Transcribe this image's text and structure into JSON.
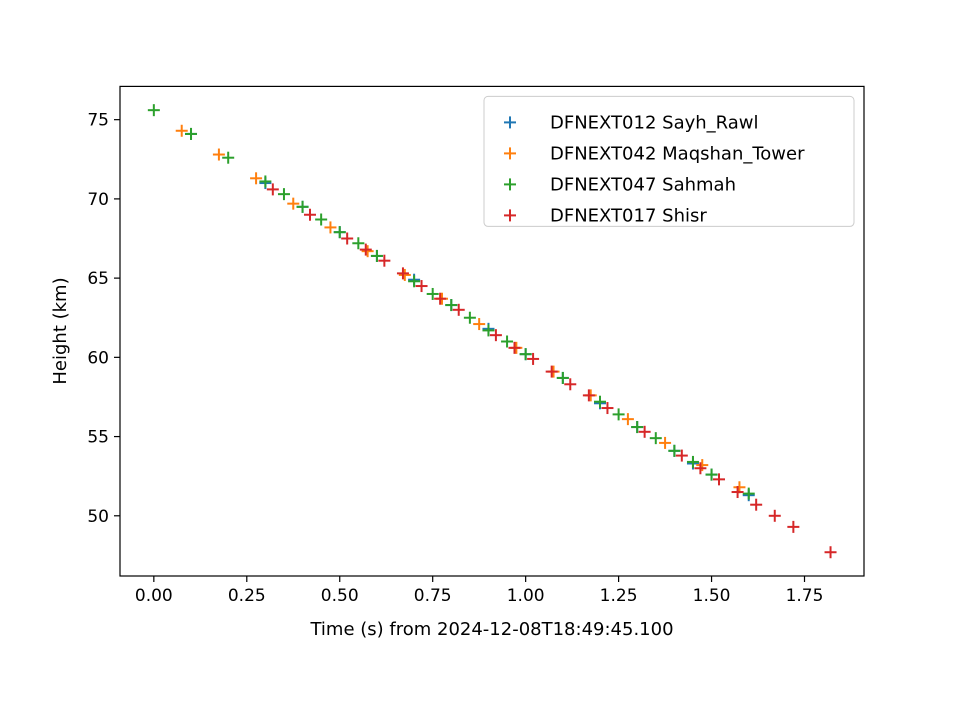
{
  "chart_data": {
    "type": "scatter",
    "title": "",
    "xlabel": "Time (s) from 2024-12-08T18:49:45.100",
    "ylabel": "Height (km)",
    "xlim": [
      -0.091,
      1.91
    ],
    "ylim": [
      46.2,
      77.1
    ],
    "xticks": [
      0.0,
      0.25,
      0.5,
      0.75,
      1.0,
      1.25,
      1.5,
      1.75
    ],
    "xtick_labels": [
      "0.00",
      "0.25",
      "0.50",
      "0.75",
      "1.00",
      "1.25",
      "1.50",
      "1.75"
    ],
    "yticks": [
      50,
      55,
      60,
      65,
      70,
      75
    ],
    "ytick_labels": [
      "50",
      "55",
      "60",
      "65",
      "70",
      "75"
    ],
    "grid": false,
    "legend_position": "top-right",
    "marker": "plus",
    "series": [
      {
        "name": "DFNEXT012 Sayh_Rawl",
        "color": "#1f77b4",
        "x": [
          0.1,
          0.3,
          0.4,
          0.5,
          0.6,
          0.7,
          0.8,
          0.9,
          1.0,
          1.1,
          1.2,
          1.3,
          1.4,
          1.45,
          1.5,
          1.6
        ],
        "y": [
          74.1,
          71.0,
          69.5,
          67.9,
          66.4,
          64.9,
          63.3,
          61.8,
          60.2,
          58.7,
          57.1,
          55.6,
          54.1,
          53.3,
          52.6,
          51.3
        ]
      },
      {
        "name": "DFNEXT042 Maqshan_Tower",
        "color": "#ff7f0e",
        "x": [
          0.075,
          0.175,
          0.275,
          0.375,
          0.475,
          0.575,
          0.675,
          0.775,
          0.875,
          0.975,
          1.075,
          1.175,
          1.275,
          1.375,
          1.475,
          1.575
        ],
        "y": [
          74.3,
          72.8,
          71.3,
          69.7,
          68.2,
          66.7,
          65.2,
          63.7,
          62.1,
          60.6,
          59.1,
          57.6,
          56.1,
          54.6,
          53.2,
          51.8
        ]
      },
      {
        "name": "DFNEXT047 Sahmah",
        "color": "#2ca02c",
        "x": [
          0.0,
          0.1,
          0.2,
          0.3,
          0.35,
          0.4,
          0.45,
          0.5,
          0.55,
          0.6,
          0.7,
          0.75,
          0.8,
          0.85,
          0.9,
          0.95,
          1.0,
          1.1,
          1.2,
          1.25,
          1.3,
          1.35,
          1.4,
          1.45,
          1.5,
          1.6
        ],
        "y": [
          75.6,
          74.1,
          72.6,
          71.1,
          70.3,
          69.5,
          68.7,
          67.9,
          67.2,
          66.4,
          64.8,
          64.0,
          63.3,
          62.5,
          61.7,
          61.0,
          60.2,
          58.7,
          57.2,
          56.4,
          55.6,
          54.9,
          54.1,
          53.4,
          52.6,
          51.4
        ]
      },
      {
        "name": "DFNEXT017 Shisr",
        "color": "#d62728",
        "x": [
          0.32,
          0.42,
          0.52,
          0.57,
          0.62,
          0.67,
          0.72,
          0.77,
          0.82,
          0.92,
          0.97,
          1.02,
          1.07,
          1.12,
          1.17,
          1.22,
          1.32,
          1.42,
          1.47,
          1.52,
          1.57,
          1.62,
          1.67,
          1.72,
          1.82
        ],
        "y": [
          70.6,
          69.0,
          67.5,
          66.8,
          66.1,
          65.3,
          64.5,
          63.7,
          63.0,
          61.4,
          60.6,
          59.9,
          59.1,
          58.3,
          57.6,
          56.8,
          55.3,
          53.8,
          53.0,
          52.3,
          51.5,
          50.7,
          50.0,
          49.3,
          47.7
        ]
      }
    ]
  }
}
